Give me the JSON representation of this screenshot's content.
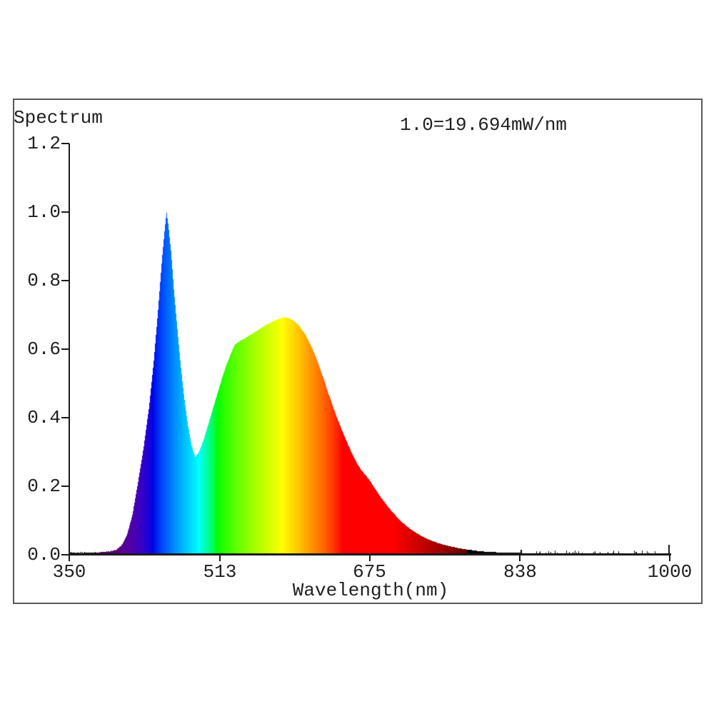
{
  "page": {
    "background": "#ffffff"
  },
  "chart": {
    "title": "Spectrum",
    "scale_note": "1.0=19.694mW/nm",
    "xlabel": "Wavelength(nm)",
    "x_ticks": [
      "350",
      "513",
      "675",
      "838",
      "1000"
    ],
    "y_ticks": [
      "0.0",
      "0.2",
      "0.4",
      "0.6",
      "0.8",
      "1.0",
      "1.2"
    ]
  },
  "chart_data": {
    "type": "area",
    "title": "Spectrum",
    "subtitle": "1.0=19.694mW/nm",
    "xlabel": "Wavelength(nm)",
    "ylabel": "",
    "x_range_nm": [
      350,
      1000
    ],
    "y_range": [
      0.0,
      1.2
    ],
    "x_tick_values": [
      350,
      513,
      675,
      838,
      1000
    ],
    "y_tick_values": [
      0.0,
      0.2,
      0.4,
      0.6,
      0.8,
      1.0,
      1.2
    ],
    "grid": false,
    "legend": false,
    "fill_style": "spectral-wavelength-colors",
    "axis_color": "#1b1b1b",
    "text_color": "#1f1f1f",
    "frame_color": "#595959",
    "peaks": [
      {
        "wavelength_nm": 455,
        "value": 1.0,
        "note": "narrow blue LED peak"
      },
      {
        "wavelength_nm": 582,
        "value": 0.69,
        "note": "broad phosphor peak"
      }
    ],
    "valley": {
      "wavelength_nm": 486,
      "value": 0.285
    },
    "tail_noise_above_nm": 835,
    "points": {
      "wavelength_nm": [
        350,
        375,
        390,
        400,
        406,
        412,
        418,
        424,
        430,
        436,
        441,
        446,
        450,
        453,
        455,
        457,
        460,
        463,
        466,
        470,
        474,
        478,
        482,
        486,
        490,
        495,
        500,
        505,
        510,
        515,
        520,
        525,
        529,
        534,
        540,
        546,
        552,
        558,
        564,
        570,
        576,
        582,
        586,
        590,
        595,
        600,
        605,
        610,
        615,
        620,
        625,
        630,
        635,
        640,
        645,
        650,
        655,
        660,
        665,
        670,
        675,
        680,
        685,
        690,
        695,
        700,
        706,
        712,
        718,
        724,
        730,
        736,
        742,
        748,
        754,
        760,
        768,
        776,
        784,
        792,
        800,
        810,
        820,
        830,
        840,
        855,
        870,
        890,
        910,
        940,
        970,
        1000
      ],
      "value": [
        0.005,
        0.005,
        0.007,
        0.012,
        0.025,
        0.055,
        0.115,
        0.21,
        0.31,
        0.43,
        0.56,
        0.72,
        0.86,
        0.95,
        1.0,
        0.96,
        0.88,
        0.77,
        0.68,
        0.56,
        0.46,
        0.38,
        0.32,
        0.285,
        0.3,
        0.335,
        0.38,
        0.425,
        0.47,
        0.515,
        0.555,
        0.59,
        0.613,
        0.623,
        0.632,
        0.642,
        0.652,
        0.663,
        0.672,
        0.681,
        0.688,
        0.693,
        0.692,
        0.687,
        0.678,
        0.663,
        0.643,
        0.618,
        0.588,
        0.552,
        0.513,
        0.472,
        0.433,
        0.396,
        0.362,
        0.33,
        0.3,
        0.272,
        0.25,
        0.233,
        0.217,
        0.195,
        0.175,
        0.156,
        0.139,
        0.123,
        0.105,
        0.09,
        0.077,
        0.066,
        0.056,
        0.048,
        0.041,
        0.035,
        0.03,
        0.026,
        0.021,
        0.017,
        0.014,
        0.011,
        0.009,
        0.0075,
        0.0065,
        0.0058,
        0.0052,
        0.0046,
        0.0042,
        0.0038,
        0.0035,
        0.0032,
        0.003,
        0.0028
      ]
    }
  }
}
